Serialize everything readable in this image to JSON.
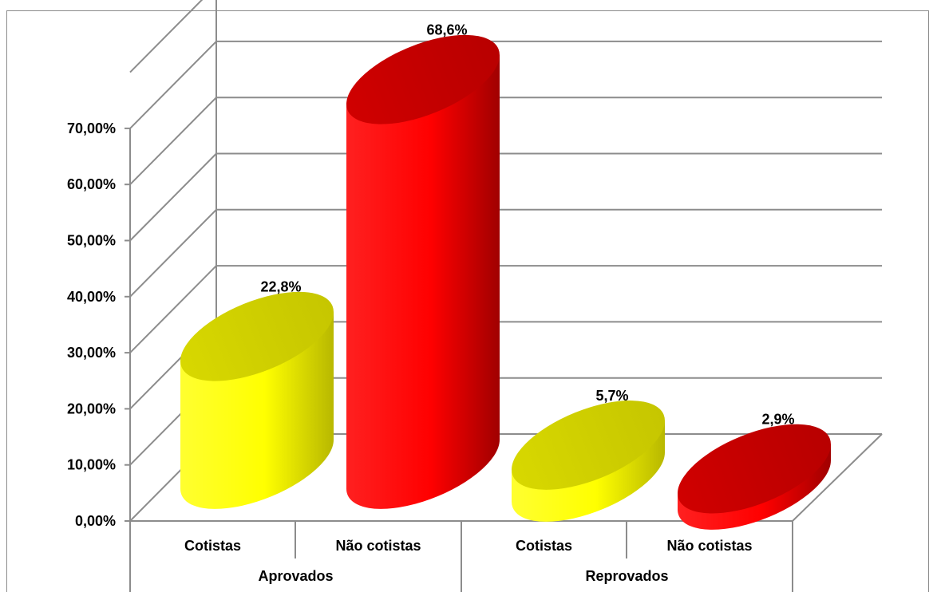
{
  "chart_data": {
    "type": "bar",
    "style": "3d-cylinder",
    "categories": [
      "Cotistas",
      "Não cotistas",
      "Cotistas",
      "Não cotistas"
    ],
    "groups": [
      {
        "label": "Aprovados",
        "span": [
          0,
          1
        ]
      },
      {
        "label": "Reprovados",
        "span": [
          2,
          3
        ]
      }
    ],
    "values": [
      22.8,
      68.6,
      5.7,
      2.9
    ],
    "data_labels": [
      "22,8%",
      "68,6%",
      "5,7%",
      "2,9%"
    ],
    "bar_colors": [
      "#f2f200",
      "#e60000",
      "#f2f200",
      "#e60000"
    ],
    "ylim": [
      0,
      80
    ],
    "yticks": [
      {
        "value": 0,
        "label": "0,00%"
      },
      {
        "value": 10,
        "label": "10,00%"
      },
      {
        "value": 20,
        "label": "20,00%"
      },
      {
        "value": 30,
        "label": "30,00%"
      },
      {
        "value": 40,
        "label": "40,00%"
      },
      {
        "value": 50,
        "label": "50,00%"
      },
      {
        "value": 60,
        "label": "60,00%"
      },
      {
        "value": 70,
        "label": "70,00%"
      }
    ],
    "grid": true,
    "legend": "none",
    "title": "",
    "xlabel": "",
    "ylabel": ""
  }
}
